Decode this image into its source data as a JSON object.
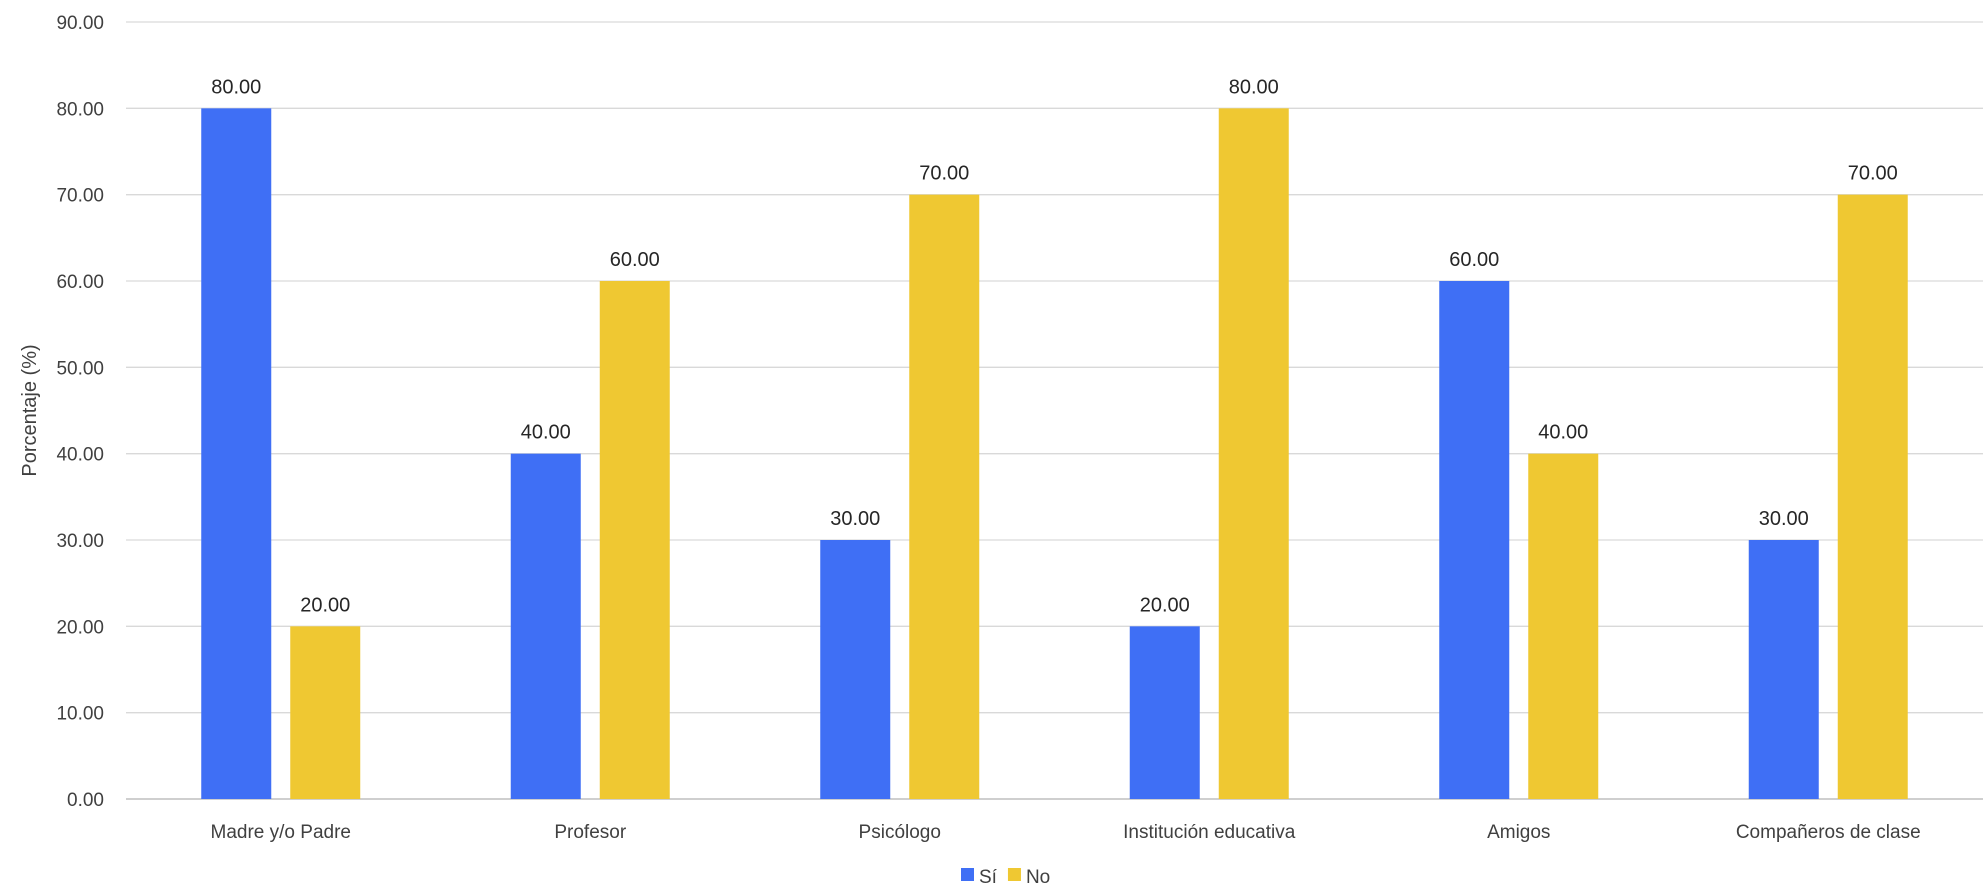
{
  "chart_data": {
    "type": "bar",
    "title": "",
    "xlabel": "",
    "ylabel": "Porcentaje (%)",
    "ylim": [
      0,
      90
    ],
    "ytick_step": 10,
    "grid": true,
    "legend_position": "bottom",
    "categories": [
      "Madre y/o Padre",
      "Profesor",
      "Psicólogo",
      "Institución educativa",
      "Amigos",
      "Compañeros de clase"
    ],
    "series": [
      {
        "name": "Sí",
        "color": "#3f6ff5",
        "values": [
          80,
          40,
          30,
          20,
          60,
          30
        ]
      },
      {
        "name": "No",
        "color": "#efc832",
        "values": [
          20,
          60,
          70,
          80,
          40,
          70
        ]
      }
    ]
  }
}
